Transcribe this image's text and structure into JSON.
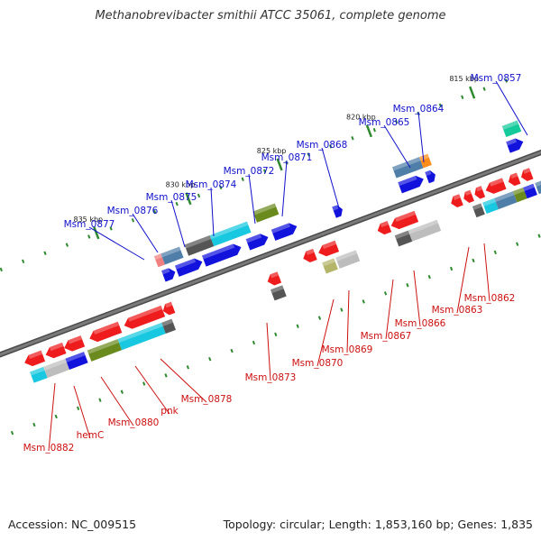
{
  "title": "Methanobrevibacter smithii ATCC 35061, complete genome",
  "footer": {
    "accession": "Accession: NC_009515",
    "summary": "Topology: circular; Length: 1,853,160 bp; Genes: 1,835"
  },
  "colors": {
    "backbone": "#7a7a7a",
    "tick": "#2f8a2f",
    "forward_label": "#1010cc",
    "reverse_label": "#cc1010",
    "red": "#ee1c1c",
    "blue": "#1212dd",
    "cyan": "#17c8e0",
    "olive": "#6b8a1e",
    "gray": "#555555",
    "lightgray": "#bdbdbd",
    "steel": "#4f7fa8",
    "orange": "#ff8c1a",
    "teal": "#14c99a",
    "pink": "#f08080",
    "khaki": "#b5b56a"
  },
  "scale_labels": [
    "835 kbp",
    "830 kbp",
    "825 kbp",
    "820 kbp",
    "815 kbp"
  ],
  "gene_labels_forward": [
    "Msm_0877",
    "Msm_0876",
    "Msm_0875",
    "Msm_0874",
    "Msm_0872",
    "Msm_0871",
    "Msm_0868",
    "Msm_0865",
    "Msm_0864",
    "Msm_0857"
  ],
  "gene_labels_reverse": [
    "Msm_0882",
    "hemC",
    "Msm_0880",
    "pnk",
    "Msm_0878",
    "Msm_0873",
    "Msm_0870",
    "Msm_0869",
    "Msm_0867",
    "Msm_0866",
    "Msm_0863",
    "Msm_0862"
  ]
}
